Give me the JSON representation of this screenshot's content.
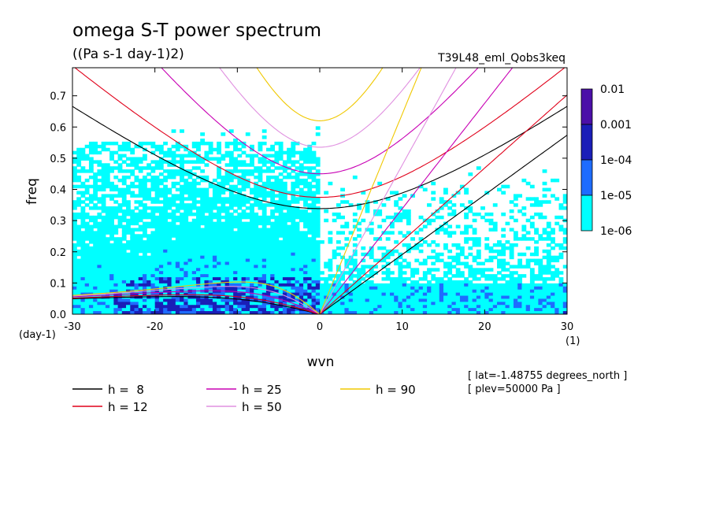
{
  "chart_data": {
    "type": "heatmap",
    "title": "omega S-T power spectrum",
    "subtitle": "((Pa s-1 day-1)2)",
    "run_label": "T39L48_eml_Qobs3keq",
    "xlabel": "wvn",
    "ylabel": "freq",
    "x_unit": "(1)",
    "y_unit": "(day-1)",
    "xlim": [
      -30,
      30
    ],
    "ylim": [
      0,
      0.79
    ],
    "xticks": [
      "-30",
      "-20",
      "-10",
      "0",
      "10",
      "20",
      "30"
    ],
    "yticks": [
      "0.0",
      "0.1",
      "0.2",
      "0.3",
      "0.4",
      "0.5",
      "0.6",
      "0.7"
    ],
    "colorbar": {
      "levels": [
        "0.01",
        "0.001",
        "1e-04",
        "1e-05",
        "1e-06"
      ],
      "colors": [
        "#4b0fa8",
        "#1a1eb8",
        "#1e6cff",
        "#00ffff"
      ]
    },
    "grid": false,
    "legend_position": "bottom",
    "series": [
      {
        "name": "h =  8",
        "h": 8,
        "color": "#000000"
      },
      {
        "name": "h = 12",
        "h": 12,
        "color": "#e0001a"
      },
      {
        "name": "h = 25",
        "h": 25,
        "color": "#c800b4"
      },
      {
        "name": "h = 50",
        "h": 50,
        "color": "#e090e0"
      },
      {
        "name": "h = 90",
        "h": 90,
        "color": "#f0c800"
      }
    ],
    "annotations": [
      "[ lat=-1.48755 degrees_north ]",
      "[ plev=50000 Pa ]"
    ]
  }
}
